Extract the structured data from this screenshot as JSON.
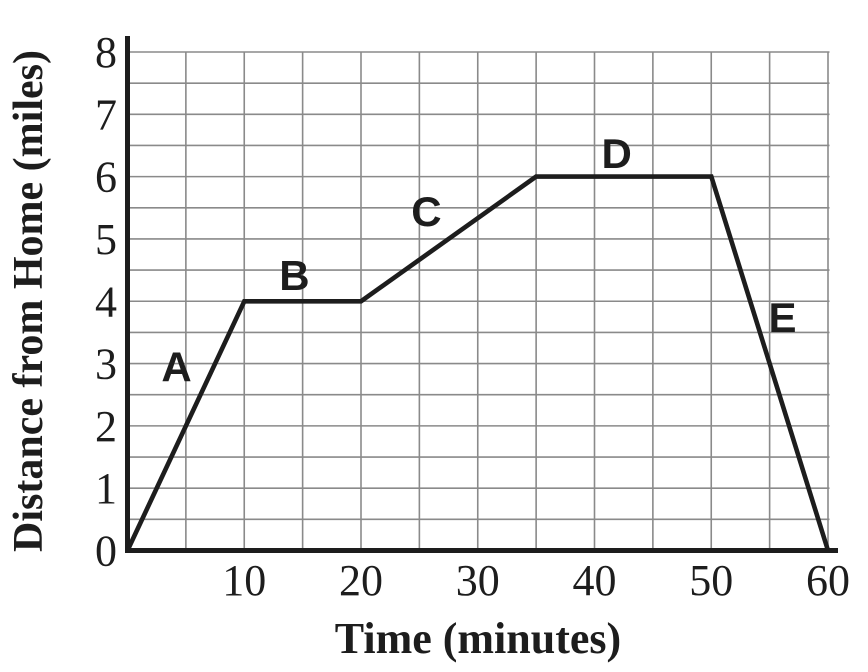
{
  "chart_data": {
    "type": "line",
    "title": "",
    "xlabel": "Time (minutes)",
    "ylabel": "Distance from Home (miles)",
    "xlim": [
      0,
      60
    ],
    "ylim": [
      0,
      8
    ],
    "x_ticks": [
      10,
      20,
      30,
      40,
      50,
      60
    ],
    "y_ticks": [
      0,
      1,
      2,
      3,
      4,
      5,
      6,
      7,
      8
    ],
    "grid": {
      "on": true,
      "x_step": 5,
      "y_step": 0.5
    },
    "points": [
      {
        "t": 0,
        "d": 0
      },
      {
        "t": 10,
        "d": 4
      },
      {
        "t": 20,
        "d": 4
      },
      {
        "t": 35,
        "d": 6
      },
      {
        "t": 50,
        "d": 6
      },
      {
        "t": 60,
        "d": 0
      }
    ],
    "segments": [
      {
        "label": "A",
        "from_t": 0,
        "to_t": 10,
        "from_d": 0,
        "to_d": 4,
        "label_t": 4.2,
        "label_d": 2.95
      },
      {
        "label": "B",
        "from_t": 10,
        "to_t": 20,
        "from_d": 4,
        "to_d": 4,
        "label_t": 14.3,
        "label_d": 4.42
      },
      {
        "label": "C",
        "from_t": 20,
        "to_t": 35,
        "from_d": 4,
        "to_d": 6,
        "label_t": 25.6,
        "label_d": 5.45
      },
      {
        "label": "D",
        "from_t": 35,
        "to_t": 50,
        "from_d": 6,
        "to_d": 6,
        "label_t": 41.9,
        "label_d": 6.38
      },
      {
        "label": "E",
        "from_t": 50,
        "to_t": 60,
        "from_d": 6,
        "to_d": 0,
        "label_t": 56.1,
        "label_d": 3.75
      }
    ],
    "colors": {
      "line": "#1d1d1d",
      "axis": "#1d1d1d",
      "grid": "#8a8a8a",
      "text": "#1d1d1d",
      "background": "#ffffff"
    },
    "legend": {
      "visible": false
    }
  }
}
